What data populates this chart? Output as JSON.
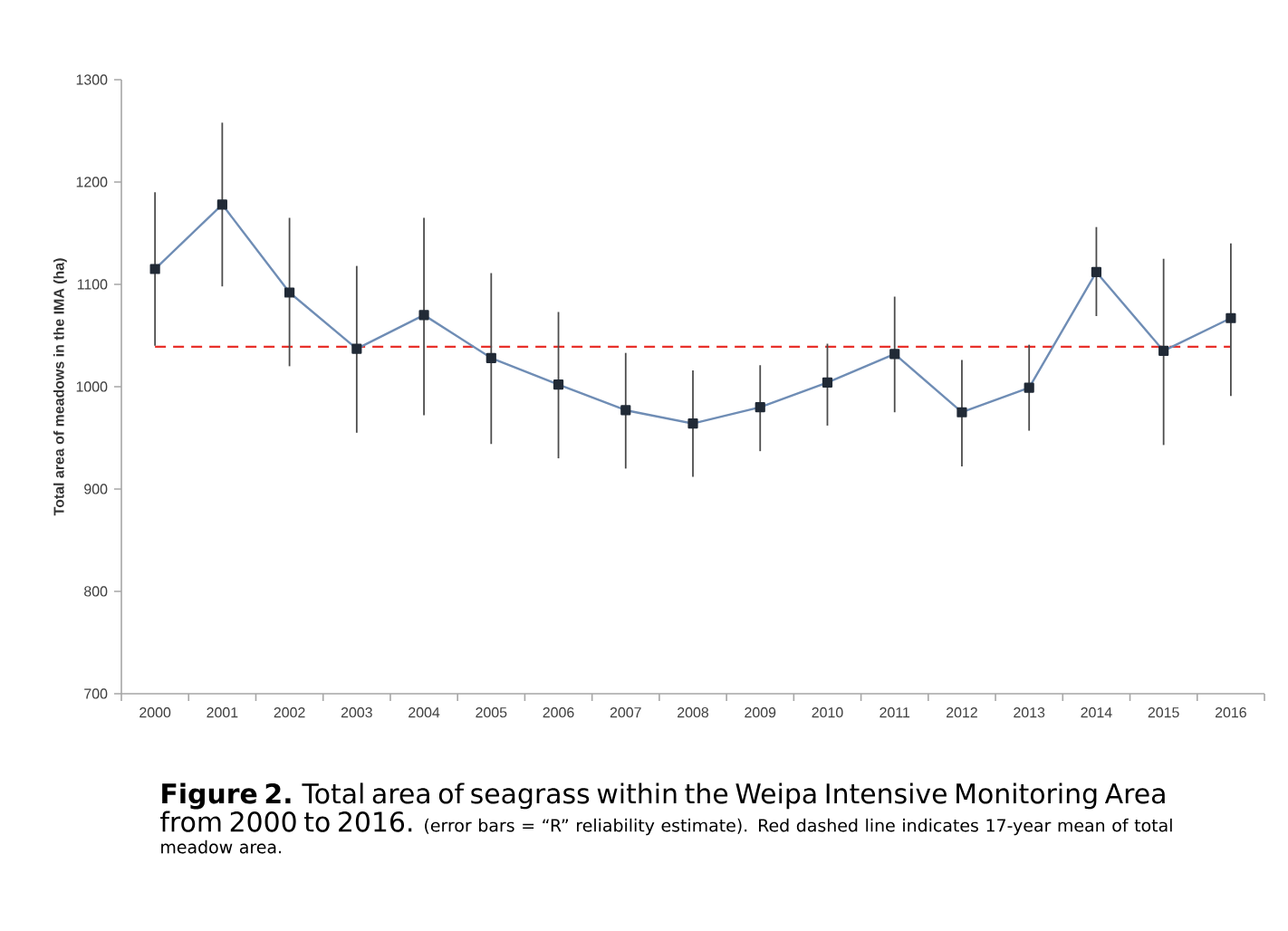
{
  "chart_data": {
    "type": "line",
    "ylabel": "Total area of meadows in the IMA (ha)",
    "categories": [
      "2000",
      "2001",
      "2002",
      "2003",
      "2004",
      "2005",
      "2006",
      "2007",
      "2008",
      "2009",
      "2010",
      "2011",
      "2012",
      "2013",
      "2014",
      "2015",
      "2016"
    ],
    "series": [
      {
        "color": "#6f8db5",
        "values": [
          1115,
          1178,
          1092,
          1037,
          1070,
          1028,
          1002,
          977,
          964,
          980,
          1004,
          1032,
          975,
          999,
          1112,
          1035,
          1067
        ],
        "errors": [
          [
            1040,
            1190
          ],
          [
            1098,
            1258
          ],
          [
            1020,
            1165
          ],
          [
            955,
            1118
          ],
          [
            972,
            1165
          ],
          [
            944,
            1111
          ],
          [
            930,
            1073
          ],
          [
            920,
            1033
          ],
          [
            912,
            1016
          ],
          [
            937,
            1021
          ],
          [
            962,
            1042
          ],
          [
            975,
            1088
          ],
          [
            922,
            1026
          ],
          [
            957,
            1041
          ],
          [
            1069,
            1156
          ],
          [
            943,
            1125
          ],
          [
            991,
            1140
          ]
        ]
      }
    ],
    "marker": "square",
    "line_style": "solid",
    "ylim": [
      700,
      1300
    ],
    "yticks": [
      700,
      800,
      900,
      1000,
      1100,
      1200,
      1300
    ],
    "ref_lines": [
      {
        "axis": "y",
        "value": 1039,
        "color": "#e8302a",
        "line_style": "dashed"
      }
    ],
    "annotations": [
      "**Figure 2.** Total area of seagrass within the Weipa Intensive Monitoring Area from 2000 to 2016.",
      "(error bars = “R” reliability estimate). Red dashed line indicates 17-year mean of total meadow area."
    ]
  }
}
